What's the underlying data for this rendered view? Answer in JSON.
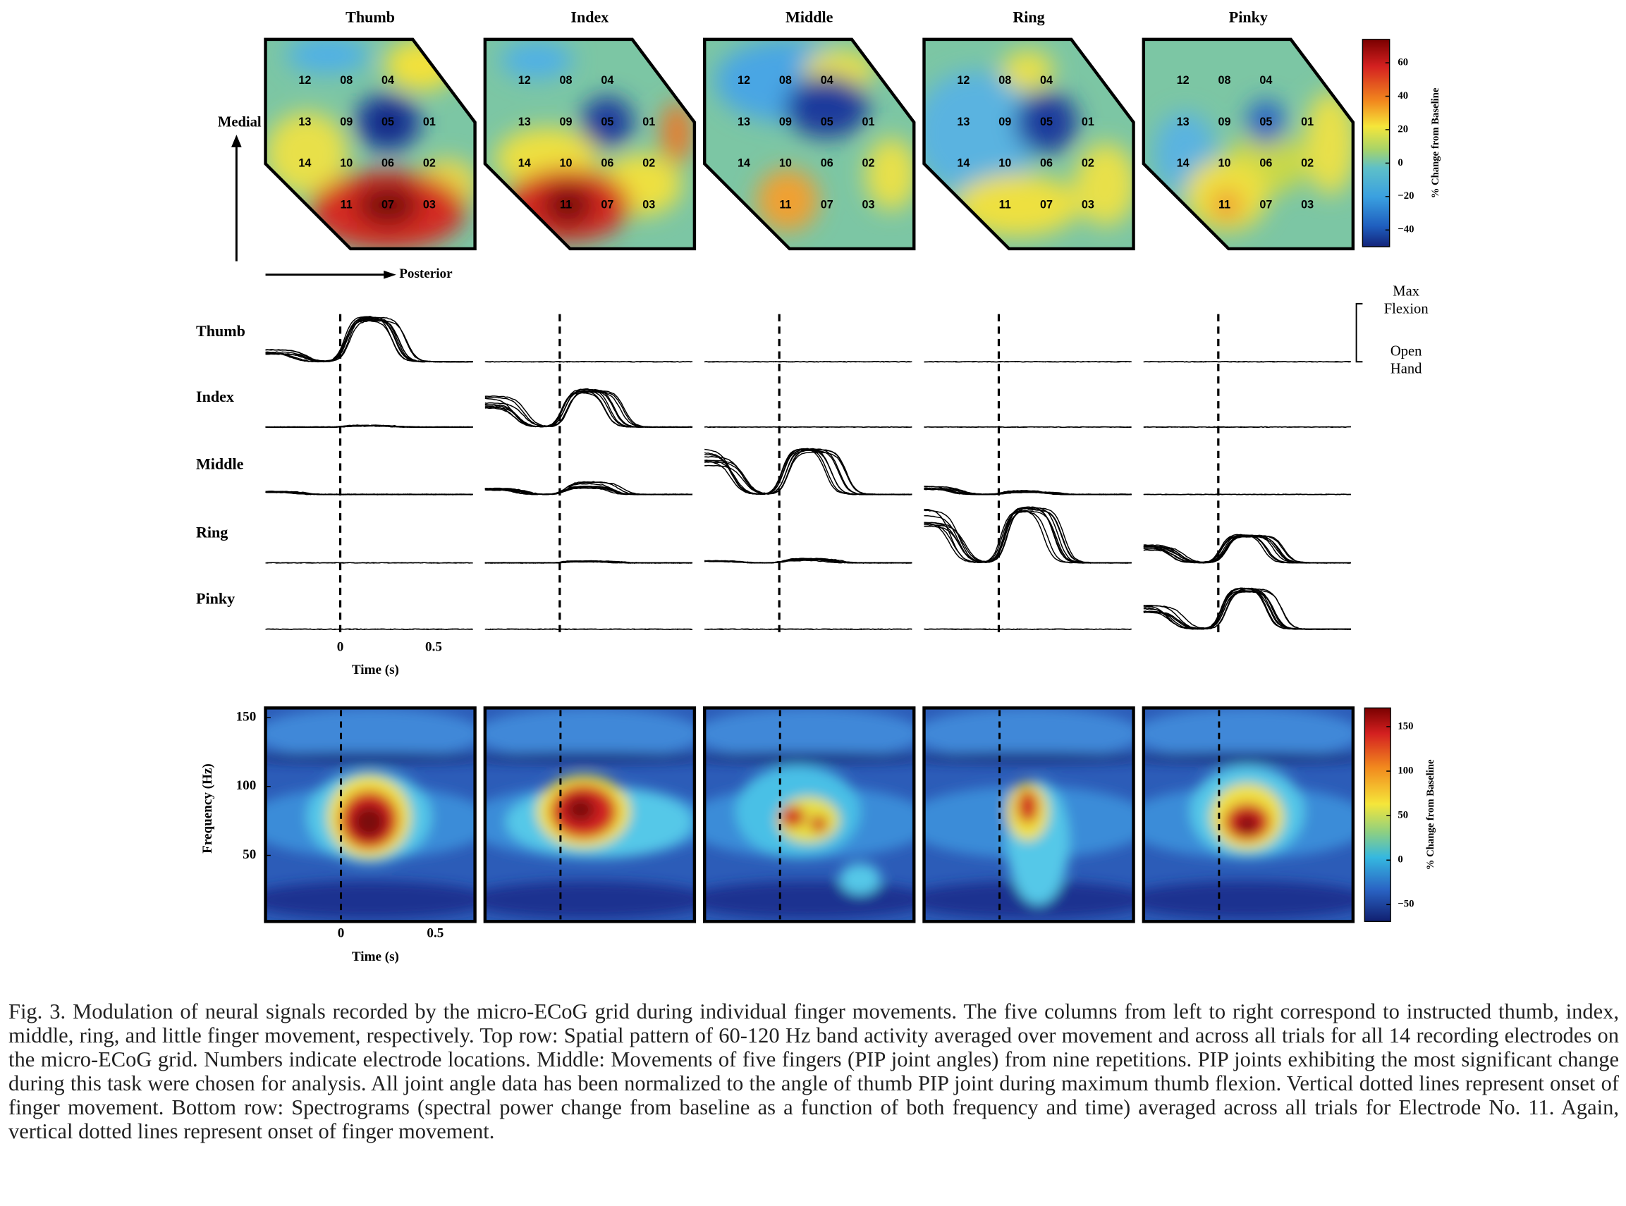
{
  "columns": [
    "Thumb",
    "Index",
    "Middle",
    "Ring",
    "Pinky"
  ],
  "spatial": {
    "medial_label": "Medial",
    "posterior_label": "Posterior",
    "electrodes": [
      [
        "12",
        "08",
        "04",
        null
      ],
      [
        "13",
        "09",
        "05",
        "01"
      ],
      [
        "14",
        "10",
        "06",
        "02"
      ],
      [
        null,
        "11",
        "07",
        "03"
      ]
    ],
    "colorbar": {
      "label": "% Change from Baseline",
      "lim": [
        -50,
        74
      ],
      "ticks": [
        60,
        40,
        20,
        0,
        {
          "value": -20,
          "label": "−20"
        },
        {
          "value": -40,
          "label": "−40"
        }
      ]
    }
  },
  "movement": {
    "rows": [
      "Thumb",
      "Index",
      "Middle",
      "Ring",
      "Pinky"
    ],
    "max_label": [
      "Max",
      "Flexion"
    ],
    "min_label": [
      "Open",
      "Hand"
    ],
    "xlabel": "Time (s)",
    "xlim": [
      -0.4,
      0.71
    ],
    "xticks": [
      0,
      0.5
    ]
  },
  "spectrogram": {
    "ylabel": "Frequency (Hz)",
    "ylim": [
      2,
      157
    ],
    "yticks": [
      50,
      100,
      150
    ],
    "xlabel": "Time (s)",
    "xlim": [
      -0.4,
      0.71
    ],
    "xticks": [
      0,
      0.5
    ],
    "colorbar": {
      "label": "% Change from Baseline",
      "lim": [
        -69,
        171
      ],
      "ticks": [
        150,
        100,
        50,
        0,
        {
          "value": -50,
          "label": "−50"
        }
      ]
    }
  },
  "caption": "Fig. 3.   Modulation of neural signals recorded by the micro-ECoG grid during individual finger movements. The five columns from left to right correspond to instructed thumb, index, middle, ring, and little finger movement, respectively. Top row: Spatial pattern of 60-120 Hz band activity averaged over movement and across all trials for all 14 recording electrodes on the micro-ECoG grid. Numbers indicate electrode locations. Middle: Movements of five fingers (PIP joint angles) from nine repetitions. PIP joints exhibiting the most significant change during this task were chosen for analysis. All joint angle data has been normalized to the angle of thumb PIP joint during maximum thumb flexion. Vertical dotted lines represent onset of finger movement. Bottom row: Spectrograms (spectral power change from baseline as a function of both frequency and time) averaged across all trials for Electrode No. 11. Again, vertical dotted lines represent onset of finger movement."
}
